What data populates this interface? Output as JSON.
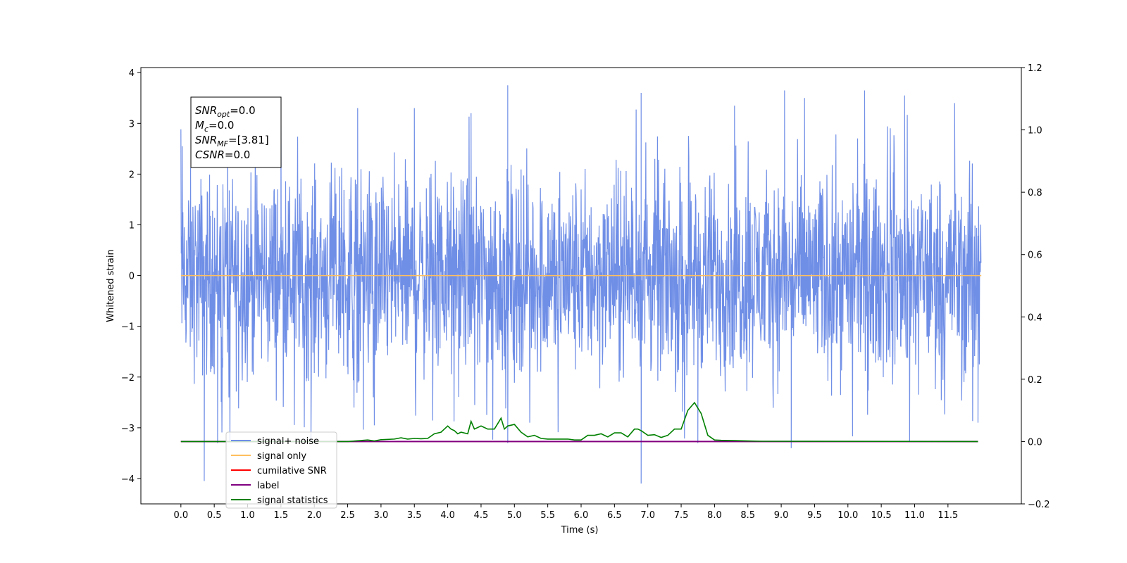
{
  "chart_data": {
    "type": "line",
    "xlabel": "Time (s)",
    "ylabel": "Whitened strain",
    "xlim": [
      -0.6,
      12.6
    ],
    "ylim": [
      -4.5,
      4.1
    ],
    "y2lim": [
      -0.2,
      1.2
    ],
    "x_ticks": [
      "0.0",
      "0.5",
      "1.0",
      "1.5",
      "2.0",
      "2.5",
      "3.0",
      "3.5",
      "4.0",
      "4.5",
      "5.0",
      "5.5",
      "6.0",
      "6.5",
      "7.0",
      "7.5",
      "8.0",
      "8.5",
      "9.0",
      "9.5",
      "10.0",
      "10.5",
      "11.0",
      "11.5"
    ],
    "y_ticks": [
      "4",
      "3",
      "2",
      "1",
      "0",
      "−1",
      "−2",
      "−3",
      "−4"
    ],
    "y2_ticks": [
      "1.2",
      "1.0",
      "0.8",
      "0.6",
      "0.4",
      "0.2",
      "0.0",
      "−0.2"
    ],
    "grid": false,
    "legend_placement": "lower-left",
    "info_box": {
      "lines": [
        {
          "base": "SNR",
          "sub": "opt",
          "rest": "=0.0"
        },
        {
          "base": "M",
          "sub": "c",
          "rest": "=0.0"
        },
        {
          "base": "SNR",
          "sub": "MF",
          "rest": "=[3.81]"
        },
        {
          "base": "CSNR",
          "sub": "",
          "rest": "=0.0"
        }
      ]
    },
    "series": [
      {
        "name": "signal+ noise",
        "axis": "left",
        "color": "#6f8ee6",
        "noise_like": true,
        "x_range": [
          0.0,
          12.0
        ],
        "envelope": {
          "typical_upper": 1.3,
          "typical_lower": -1.4,
          "peaks": [
            {
              "x": 0.02,
              "y": 2.55
            },
            {
              "x": 0.35,
              "y": -4.05
            },
            {
              "x": 0.55,
              "y": -3.3
            },
            {
              "x": 0.7,
              "y": 3.3
            },
            {
              "x": 1.5,
              "y": 3.25
            },
            {
              "x": 1.95,
              "y": -3.3
            },
            {
              "x": 2.65,
              "y": 3.3
            },
            {
              "x": 3.5,
              "y": 3.3
            },
            {
              "x": 4.35,
              "y": 3.2
            },
            {
              "x": 4.9,
              "y": 3.75
            },
            {
              "x": 4.9,
              "y": -3.3
            },
            {
              "x": 6.9,
              "y": 3.6
            },
            {
              "x": 6.9,
              "y": -4.1
            },
            {
              "x": 7.75,
              "y": -3.3
            },
            {
              "x": 8.3,
              "y": 3.35
            },
            {
              "x": 9.05,
              "y": 3.65
            },
            {
              "x": 9.15,
              "y": -3.4
            },
            {
              "x": 9.35,
              "y": 3.5
            },
            {
              "x": 10.25,
              "y": 3.65
            },
            {
              "x": 10.85,
              "y": 3.55
            },
            {
              "x": 11.6,
              "y": 3.4
            },
            {
              "x": 11.95,
              "y": -2.9
            }
          ]
        }
      },
      {
        "name": "signal only",
        "axis": "left",
        "color": "#ffbf5e",
        "x": [
          0.0,
          12.0
        ],
        "y": [
          0.0,
          0.0
        ]
      },
      {
        "name": "cumilative SNR",
        "axis": "right",
        "color": "#ff0000",
        "x": [
          0.0,
          11.95
        ],
        "y": [
          0.0,
          0.0
        ]
      },
      {
        "name": "label",
        "axis": "right",
        "color": "#800080",
        "x": [
          0.0,
          11.95
        ],
        "y": [
          0.0,
          0.0
        ]
      },
      {
        "name": "signal statistics",
        "axis": "right",
        "color": "#008000",
        "x": [
          0.0,
          2.5,
          2.8,
          2.9,
          3.0,
          3.2,
          3.3,
          3.4,
          3.5,
          3.6,
          3.7,
          3.8,
          3.9,
          4.0,
          4.05,
          4.1,
          4.15,
          4.2,
          4.3,
          4.35,
          4.4,
          4.5,
          4.6,
          4.7,
          4.8,
          4.85,
          4.9,
          5.0,
          5.1,
          5.2,
          5.3,
          5.4,
          5.5,
          5.6,
          5.8,
          5.9,
          6.0,
          6.1,
          6.2,
          6.3,
          6.4,
          6.5,
          6.6,
          6.7,
          6.8,
          6.85,
          6.9,
          7.0,
          7.1,
          7.2,
          7.3,
          7.4,
          7.5,
          7.6,
          7.7,
          7.8,
          7.9,
          8.0,
          8.1,
          8.3,
          8.5,
          8.7,
          11.95
        ],
        "y": [
          0.0,
          0.0,
          0.005,
          0.002,
          0.006,
          0.008,
          0.012,
          0.008,
          0.01,
          0.009,
          0.01,
          0.025,
          0.03,
          0.05,
          0.04,
          0.035,
          0.025,
          0.03,
          0.025,
          0.065,
          0.04,
          0.05,
          0.04,
          0.04,
          0.075,
          0.04,
          0.05,
          0.055,
          0.03,
          0.015,
          0.02,
          0.01,
          0.008,
          0.008,
          0.008,
          0.005,
          0.005,
          0.02,
          0.02,
          0.025,
          0.015,
          0.028,
          0.028,
          0.015,
          0.04,
          0.04,
          0.035,
          0.02,
          0.022,
          0.013,
          0.02,
          0.04,
          0.04,
          0.1,
          0.125,
          0.09,
          0.02,
          0.005,
          0.004,
          0.003,
          0.002,
          0.001,
          0.0
        ]
      }
    ]
  }
}
